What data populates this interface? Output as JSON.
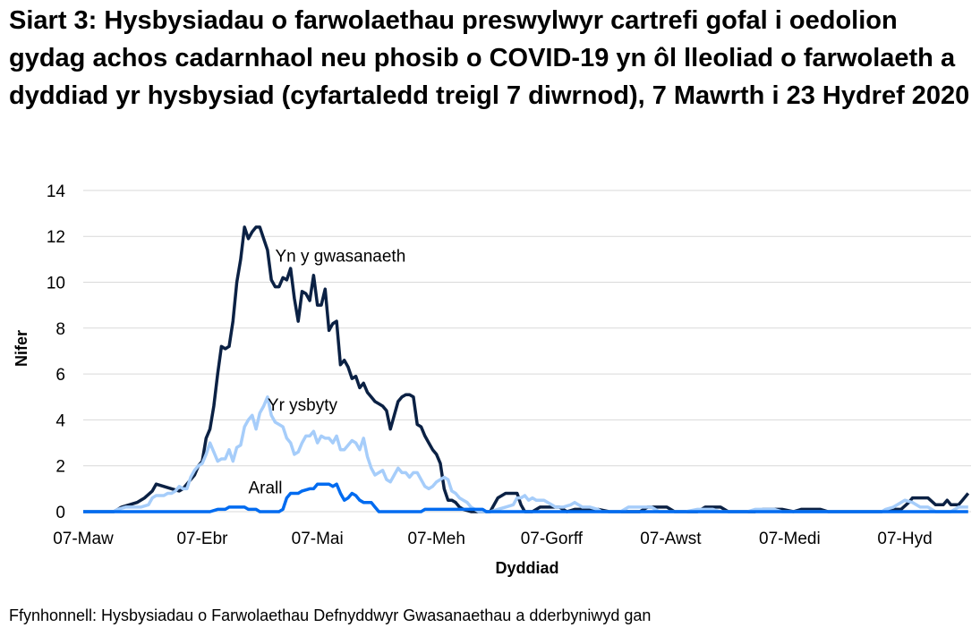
{
  "chart_data": {
    "type": "line",
    "title": "Siart 3: Hysbysiadau o farwolaethau preswylwyr cartrefi gofal i oedolion gydag achos cadarnhaol neu phosib o COVID-19 yn ôl lleoliad o farwolaeth a dyddiad yr hysbysiad (cyfartaledd treigl 7 diwrnod), 7 Mawrth i 23 Hydref 2020",
    "xlabel": "Dyddiad",
    "ylabel": "Nifer",
    "ylim": [
      0,
      14
    ],
    "yticks": [
      0,
      2,
      4,
      6,
      8,
      10,
      12,
      14
    ],
    "xticks": [
      {
        "label": "07-Maw",
        "day": 0
      },
      {
        "label": "07-Ebr",
        "day": 31
      },
      {
        "label": "07-Mai",
        "day": 61
      },
      {
        "label": "07-Meh",
        "day": 92
      },
      {
        "label": "07-Gorff",
        "day": 122
      },
      {
        "label": "07-Awst",
        "day": 153
      },
      {
        "label": "07-Medi",
        "day": 184
      },
      {
        "label": "07-Hyd",
        "day": 214
      }
    ],
    "x_range_days": [
      0,
      230
    ],
    "grid": true,
    "legend": "inline labels",
    "x_unit": "days since 07-Maw 2020",
    "series": [
      {
        "name": "Yn y gwasanaeth",
        "color": "#0b2144",
        "label_pos": {
          "day": 50,
          "y": 10.9
        },
        "points": [
          [
            0,
            0
          ],
          [
            8,
            0
          ],
          [
            10,
            0.2
          ],
          [
            12,
            0.3
          ],
          [
            14,
            0.4
          ],
          [
            16,
            0.6
          ],
          [
            18,
            0.9
          ],
          [
            19,
            1.2
          ],
          [
            21,
            1.1
          ],
          [
            23,
            1.0
          ],
          [
            25,
            0.9
          ],
          [
            26,
            1.0
          ],
          [
            27,
            1.2
          ],
          [
            29,
            1.6
          ],
          [
            30,
            2.0
          ],
          [
            31,
            2.2
          ],
          [
            32,
            3.2
          ],
          [
            33,
            3.6
          ],
          [
            34,
            4.6
          ],
          [
            35,
            6.0
          ],
          [
            36,
            7.2
          ],
          [
            37,
            7.1
          ],
          [
            38,
            7.2
          ],
          [
            39,
            8.3
          ],
          [
            40,
            10.0
          ],
          [
            41,
            11.0
          ],
          [
            42,
            12.4
          ],
          [
            43,
            11.9
          ],
          [
            44,
            12.2
          ],
          [
            45,
            12.4
          ],
          [
            46,
            12.4
          ],
          [
            47,
            11.9
          ],
          [
            48,
            11.4
          ],
          [
            49,
            10.1
          ],
          [
            50,
            9.8
          ],
          [
            51,
            9.8
          ],
          [
            52,
            10.2
          ],
          [
            53,
            10.1
          ],
          [
            54,
            10.6
          ],
          [
            55,
            9.3
          ],
          [
            56,
            8.3
          ],
          [
            57,
            9.6
          ],
          [
            58,
            9.5
          ],
          [
            59,
            9.2
          ],
          [
            60,
            10.3
          ],
          [
            61,
            9.0
          ],
          [
            62,
            9.0
          ],
          [
            63,
            9.7
          ],
          [
            64,
            7.9
          ],
          [
            65,
            8.2
          ],
          [
            66,
            8.3
          ],
          [
            67,
            6.4
          ],
          [
            68,
            6.6
          ],
          [
            69,
            6.3
          ],
          [
            70,
            5.8
          ],
          [
            71,
            5.9
          ],
          [
            72,
            5.4
          ],
          [
            73,
            5.6
          ],
          [
            74,
            5.2
          ],
          [
            75,
            5.0
          ],
          [
            76,
            4.8
          ],
          [
            77,
            4.7
          ],
          [
            78,
            4.6
          ],
          [
            79,
            4.4
          ],
          [
            80,
            3.6
          ],
          [
            81,
            4.2
          ],
          [
            82,
            4.8
          ],
          [
            83,
            5.0
          ],
          [
            84,
            5.1
          ],
          [
            85,
            5.1
          ],
          [
            86,
            5.0
          ],
          [
            87,
            3.8
          ],
          [
            88,
            3.7
          ],
          [
            89,
            3.3
          ],
          [
            90,
            3.0
          ],
          [
            91,
            2.7
          ],
          [
            92,
            2.5
          ],
          [
            93,
            2.1
          ],
          [
            94,
            1.0
          ],
          [
            95,
            0.5
          ],
          [
            96,
            0.5
          ],
          [
            97,
            0.4
          ],
          [
            98,
            0.2
          ],
          [
            99,
            0.1
          ],
          [
            101,
            0
          ],
          [
            106,
            0
          ],
          [
            108,
            0.6
          ],
          [
            110,
            0.8
          ],
          [
            113,
            0.8
          ],
          [
            114,
            0.3
          ],
          [
            115,
            0
          ],
          [
            117,
            0
          ],
          [
            119,
            0.2
          ],
          [
            122,
            0.2
          ],
          [
            124,
            0.2
          ],
          [
            126,
            0
          ],
          [
            128,
            0.1
          ],
          [
            134,
            0.1
          ],
          [
            137,
            0
          ],
          [
            145,
            0
          ],
          [
            147,
            0.2
          ],
          [
            152,
            0.2
          ],
          [
            154,
            0
          ],
          [
            160,
            0
          ],
          [
            162,
            0.2
          ],
          [
            166,
            0.2
          ],
          [
            168,
            0
          ],
          [
            175,
            0
          ],
          [
            177,
            0.1
          ],
          [
            182,
            0.1
          ],
          [
            185,
            0
          ],
          [
            187,
            0.1
          ],
          [
            192,
            0.1
          ],
          [
            194,
            0
          ],
          [
            208,
            0
          ],
          [
            210,
            0.1
          ],
          [
            213,
            0.1
          ],
          [
            215,
            0.4
          ],
          [
            216,
            0.6
          ],
          [
            220,
            0.6
          ],
          [
            222,
            0.3
          ],
          [
            224,
            0.3
          ],
          [
            225,
            0.5
          ],
          [
            226,
            0.3
          ],
          [
            228,
            0.3
          ],
          [
            229,
            0.5
          ],
          [
            231,
            0.8
          ]
        ]
      },
      {
        "name": "Yr ysbyty",
        "color": "#a6cdfa",
        "label_pos": {
          "day": 48,
          "y": 4.4
        },
        "points": [
          [
            0,
            0
          ],
          [
            8,
            0
          ],
          [
            9,
            0.1
          ],
          [
            11,
            0.2
          ],
          [
            13,
            0.2
          ],
          [
            15,
            0.2
          ],
          [
            17,
            0.3
          ],
          [
            18,
            0.6
          ],
          [
            19,
            0.7
          ],
          [
            21,
            0.7
          ],
          [
            22,
            0.8
          ],
          [
            23,
            0.8
          ],
          [
            24,
            0.9
          ],
          [
            25,
            1.1
          ],
          [
            26,
            1.0
          ],
          [
            27,
            1.0
          ],
          [
            28,
            1.5
          ],
          [
            29,
            1.8
          ],
          [
            30,
            2.0
          ],
          [
            31,
            2.1
          ],
          [
            32,
            2.5
          ],
          [
            33,
            3.0
          ],
          [
            34,
            2.6
          ],
          [
            35,
            2.2
          ],
          [
            36,
            2.3
          ],
          [
            37,
            2.3
          ],
          [
            38,
            2.7
          ],
          [
            39,
            2.2
          ],
          [
            40,
            2.8
          ],
          [
            41,
            2.9
          ],
          [
            42,
            3.7
          ],
          [
            43,
            4.0
          ],
          [
            44,
            4.2
          ],
          [
            45,
            3.6
          ],
          [
            46,
            4.3
          ],
          [
            47,
            4.6
          ],
          [
            48,
            5.0
          ],
          [
            49,
            4.2
          ],
          [
            50,
            3.9
          ],
          [
            51,
            3.8
          ],
          [
            52,
            3.7
          ],
          [
            53,
            3.2
          ],
          [
            54,
            3.0
          ],
          [
            55,
            2.5
          ],
          [
            56,
            2.6
          ],
          [
            57,
            3.0
          ],
          [
            58,
            3.3
          ],
          [
            59,
            3.3
          ],
          [
            60,
            3.5
          ],
          [
            61,
            3.0
          ],
          [
            62,
            3.3
          ],
          [
            63,
            3.2
          ],
          [
            64,
            3.2
          ],
          [
            65,
            3.0
          ],
          [
            66,
            3.3
          ],
          [
            67,
            2.7
          ],
          [
            68,
            2.7
          ],
          [
            69,
            2.9
          ],
          [
            70,
            3.1
          ],
          [
            71,
            3.0
          ],
          [
            72,
            2.7
          ],
          [
            73,
            3.2
          ],
          [
            74,
            2.4
          ],
          [
            75,
            1.9
          ],
          [
            76,
            1.6
          ],
          [
            77,
            1.7
          ],
          [
            78,
            1.8
          ],
          [
            79,
            1.4
          ],
          [
            80,
            1.3
          ],
          [
            81,
            1.6
          ],
          [
            82,
            1.9
          ],
          [
            83,
            1.7
          ],
          [
            84,
            1.7
          ],
          [
            85,
            1.5
          ],
          [
            86,
            1.7
          ],
          [
            87,
            1.7
          ],
          [
            88,
            1.4
          ],
          [
            89,
            1.1
          ],
          [
            90,
            1.0
          ],
          [
            91,
            1.1
          ],
          [
            92,
            1.3
          ],
          [
            93,
            1.4
          ],
          [
            94,
            1.5
          ],
          [
            95,
            1.4
          ],
          [
            96,
            0.9
          ],
          [
            97,
            0.8
          ],
          [
            98,
            0.6
          ],
          [
            99,
            0.5
          ],
          [
            100,
            0.4
          ],
          [
            101,
            0.2
          ],
          [
            103,
            0
          ],
          [
            106,
            0
          ],
          [
            108,
            0.1
          ],
          [
            110,
            0.2
          ],
          [
            112,
            0.3
          ],
          [
            113,
            0.6
          ],
          [
            114,
            0.6
          ],
          [
            115,
            0.7
          ],
          [
            116,
            0.5
          ],
          [
            117,
            0.6
          ],
          [
            118,
            0.5
          ],
          [
            120,
            0.5
          ],
          [
            122,
            0.3
          ],
          [
            123,
            0.2
          ],
          [
            125,
            0.2
          ],
          [
            127,
            0.3
          ],
          [
            128,
            0.4
          ],
          [
            130,
            0.2
          ],
          [
            132,
            0.2
          ],
          [
            134,
            0.1
          ],
          [
            135,
            0
          ],
          [
            140,
            0
          ],
          [
            142,
            0.2
          ],
          [
            148,
            0.2
          ],
          [
            150,
            0
          ],
          [
            157,
            0
          ],
          [
            160,
            0.1
          ],
          [
            164,
            0.1
          ],
          [
            166,
            0
          ],
          [
            173,
            0
          ],
          [
            175,
            0.1
          ],
          [
            180,
            0.1
          ],
          [
            182,
            0
          ],
          [
            208,
            0
          ],
          [
            209,
            0.1
          ],
          [
            211,
            0.2
          ],
          [
            213,
            0.4
          ],
          [
            214,
            0.5
          ],
          [
            216,
            0.4
          ],
          [
            218,
            0.2
          ],
          [
            220,
            0.2
          ],
          [
            222,
            0
          ],
          [
            226,
            0
          ],
          [
            228,
            0.2
          ],
          [
            231,
            0.2
          ]
        ]
      },
      {
        "name": "Arall",
        "color": "#006bf0",
        "label_pos": {
          "day": 43,
          "y": 0.8
        },
        "points": [
          [
            0,
            0
          ],
          [
            33,
            0
          ],
          [
            35,
            0.1
          ],
          [
            37,
            0.1
          ],
          [
            38,
            0.2
          ],
          [
            40,
            0.2
          ],
          [
            42,
            0.2
          ],
          [
            43,
            0.1
          ],
          [
            45,
            0.1
          ],
          [
            46,
            0
          ],
          [
            51,
            0
          ],
          [
            52,
            0.1
          ],
          [
            53,
            0.6
          ],
          [
            54,
            0.8
          ],
          [
            56,
            0.8
          ],
          [
            57,
            0.9
          ],
          [
            59,
            1.0
          ],
          [
            60,
            1.0
          ],
          [
            61,
            1.2
          ],
          [
            63,
            1.2
          ],
          [
            64,
            1.2
          ],
          [
            65,
            1.1
          ],
          [
            66,
            1.2
          ],
          [
            67,
            0.8
          ],
          [
            68,
            0.5
          ],
          [
            69,
            0.6
          ],
          [
            70,
            0.8
          ],
          [
            71,
            0.7
          ],
          [
            72,
            0.5
          ],
          [
            73,
            0.4
          ],
          [
            75,
            0.4
          ],
          [
            76,
            0.2
          ],
          [
            77,
            0
          ],
          [
            88,
            0
          ],
          [
            89,
            0.1
          ],
          [
            104,
            0.1
          ],
          [
            105,
            0
          ],
          [
            231,
            0
          ]
        ]
      }
    ]
  },
  "header": {
    "title": "Siart 3: Hysbysiadau o farwolaethau preswylwyr cartrefi gofal i oedolion gydag achos cadarnhaol neu phosib o COVID-19 yn ôl lleoliad o farwolaeth a dyddiad yr hysbysiad (cyfartaledd treigl 7 diwrnod), 7 Mawrth i 23 Hydref 2020"
  },
  "axis": {
    "ylabel": "Nifer",
    "xlabel": "Dyddiad"
  },
  "footer": {
    "source": "Ffynhonnell: Hysbysiadau o Farwolaethau Defnyddwyr Gwasanaethau a dderbyniwyd gan"
  },
  "colors": {
    "grid": "#d9d9d9",
    "series_dark": "#0b2144",
    "series_light": "#a6cdfa",
    "series_mid": "#006bf0"
  }
}
